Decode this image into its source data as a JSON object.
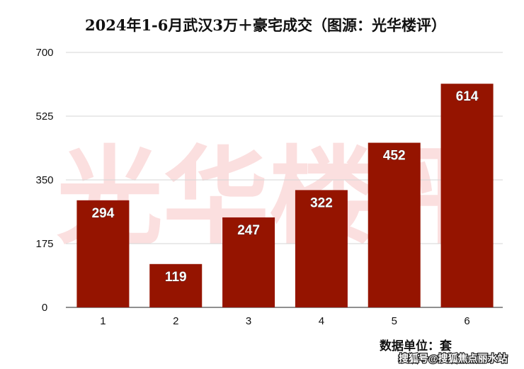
{
  "chart_data": {
    "type": "bar",
    "title": "2024年1-6月武汉3万＋豪宅成交（图源：光华楼评）",
    "categories": [
      "1",
      "2",
      "3",
      "4",
      "5",
      "6"
    ],
    "values": [
      294,
      119,
      247,
      322,
      452,
      614
    ],
    "ylim": [
      0,
      700
    ],
    "yticks": [
      0,
      175,
      350,
      525,
      700
    ],
    "grid": true,
    "xlabel": "",
    "ylabel": "",
    "unit_note": "数据单位：套",
    "bar_color": "#951400"
  },
  "watermarks": {
    "background": "光华楼评",
    "source": "搜狐号@搜狐焦点丽水站"
  }
}
